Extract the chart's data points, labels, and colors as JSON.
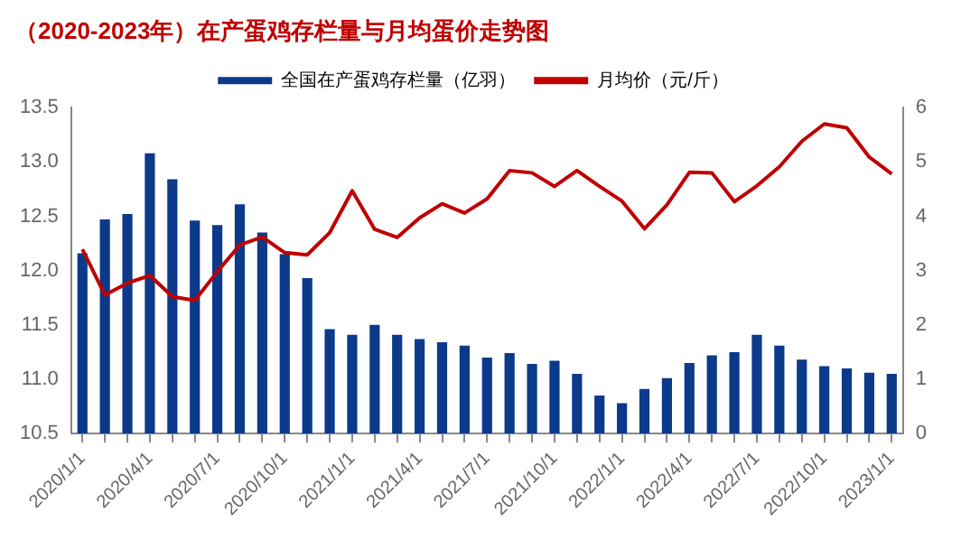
{
  "chart_data": {
    "type": "bar",
    "title": "（2020-2023年）在产蛋鸡存栏量与月均蛋价走势图",
    "categories": [
      "2020/1/1",
      null,
      null,
      "2020/4/1",
      null,
      null,
      "2020/7/1",
      null,
      null,
      "2020/10/1",
      null,
      null,
      "2021/1/1",
      null,
      null,
      "2021/4/1",
      null,
      null,
      "2021/7/1",
      null,
      null,
      "2021/10/1",
      null,
      null,
      "2022/1/1",
      null,
      null,
      "2022/4/1",
      null,
      null,
      "2022/7/1",
      null,
      null,
      "2022/10/1",
      null,
      null,
      "2023/1/1"
    ],
    "series": [
      {
        "name": "全国在产蛋鸡存栏量（亿羽）",
        "color": "#0b3a8a",
        "values": [
          12.16,
          12.47,
          12.52,
          13.08,
          12.84,
          12.46,
          12.42,
          12.61,
          12.35,
          12.15,
          11.93,
          11.46,
          11.41,
          11.5,
          11.41,
          11.37,
          11.34,
          11.31,
          11.2,
          11.24,
          11.14,
          11.17,
          11.05,
          10.85,
          10.78,
          10.91,
          11.01,
          11.15,
          11.22,
          11.25,
          11.41,
          11.31,
          11.18,
          11.12,
          11.1,
          11.06,
          11.05
        ]
      },
      {
        "name": "月均价（元/斤）",
        "type": "line",
        "axis": "y2",
        "color": "#c00000",
        "values": [
          3.39,
          2.55,
          2.77,
          2.91,
          2.52,
          2.45,
          2.98,
          3.47,
          3.62,
          3.33,
          3.29,
          3.7,
          4.47,
          3.76,
          3.61,
          3.97,
          4.23,
          4.06,
          4.32,
          4.84,
          4.8,
          4.55,
          4.84,
          4.55,
          4.28,
          3.77,
          4.21,
          4.81,
          4.8,
          4.27,
          4.56,
          4.91,
          5.38,
          5.7,
          5.63,
          5.09,
          4.78
        ]
      }
    ],
    "ylim": [
      10.5,
      13.5
    ],
    "yticks": [
      10.5,
      {
        "value": 11,
        "label": "11.0"
      },
      11.5,
      {
        "value": 12,
        "label": "12.0"
      },
      12.5,
      {
        "value": 13,
        "label": "13.0"
      },
      13.5
    ],
    "y2lim": [
      0,
      6
    ],
    "y2ticks": [
      0,
      1,
      2,
      3,
      4,
      5,
      6
    ],
    "legend": "top",
    "grid": false,
    "marker": "none"
  }
}
